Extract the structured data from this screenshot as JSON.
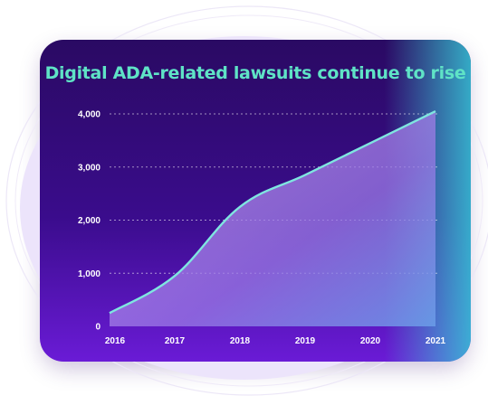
{
  "chart_data": {
    "type": "area",
    "title": "Digital ADA-related lawsuits continue to rise",
    "xlabel": "",
    "ylabel": "",
    "x": [
      "2016",
      "2017",
      "2018",
      "2019",
      "2020",
      "2021"
    ],
    "series": [
      {
        "values": [
          250,
          950,
          2250,
          2850,
          3450,
          4050
        ]
      }
    ],
    "ylim": [
      0,
      4000
    ],
    "yticks": [
      0,
      1000,
      2000,
      3000,
      4000
    ],
    "ytick_labels": [
      "0",
      "1,000",
      "2,000",
      "3,000",
      "4,000"
    ],
    "grid": true,
    "legend": "none",
    "colors": {
      "title": "#5fe3c6",
      "line": "#7fe6e0",
      "card_top": "#2a0a63",
      "card_bottom": "#6a1bd6",
      "blob": "#e9e1fb"
    }
  }
}
